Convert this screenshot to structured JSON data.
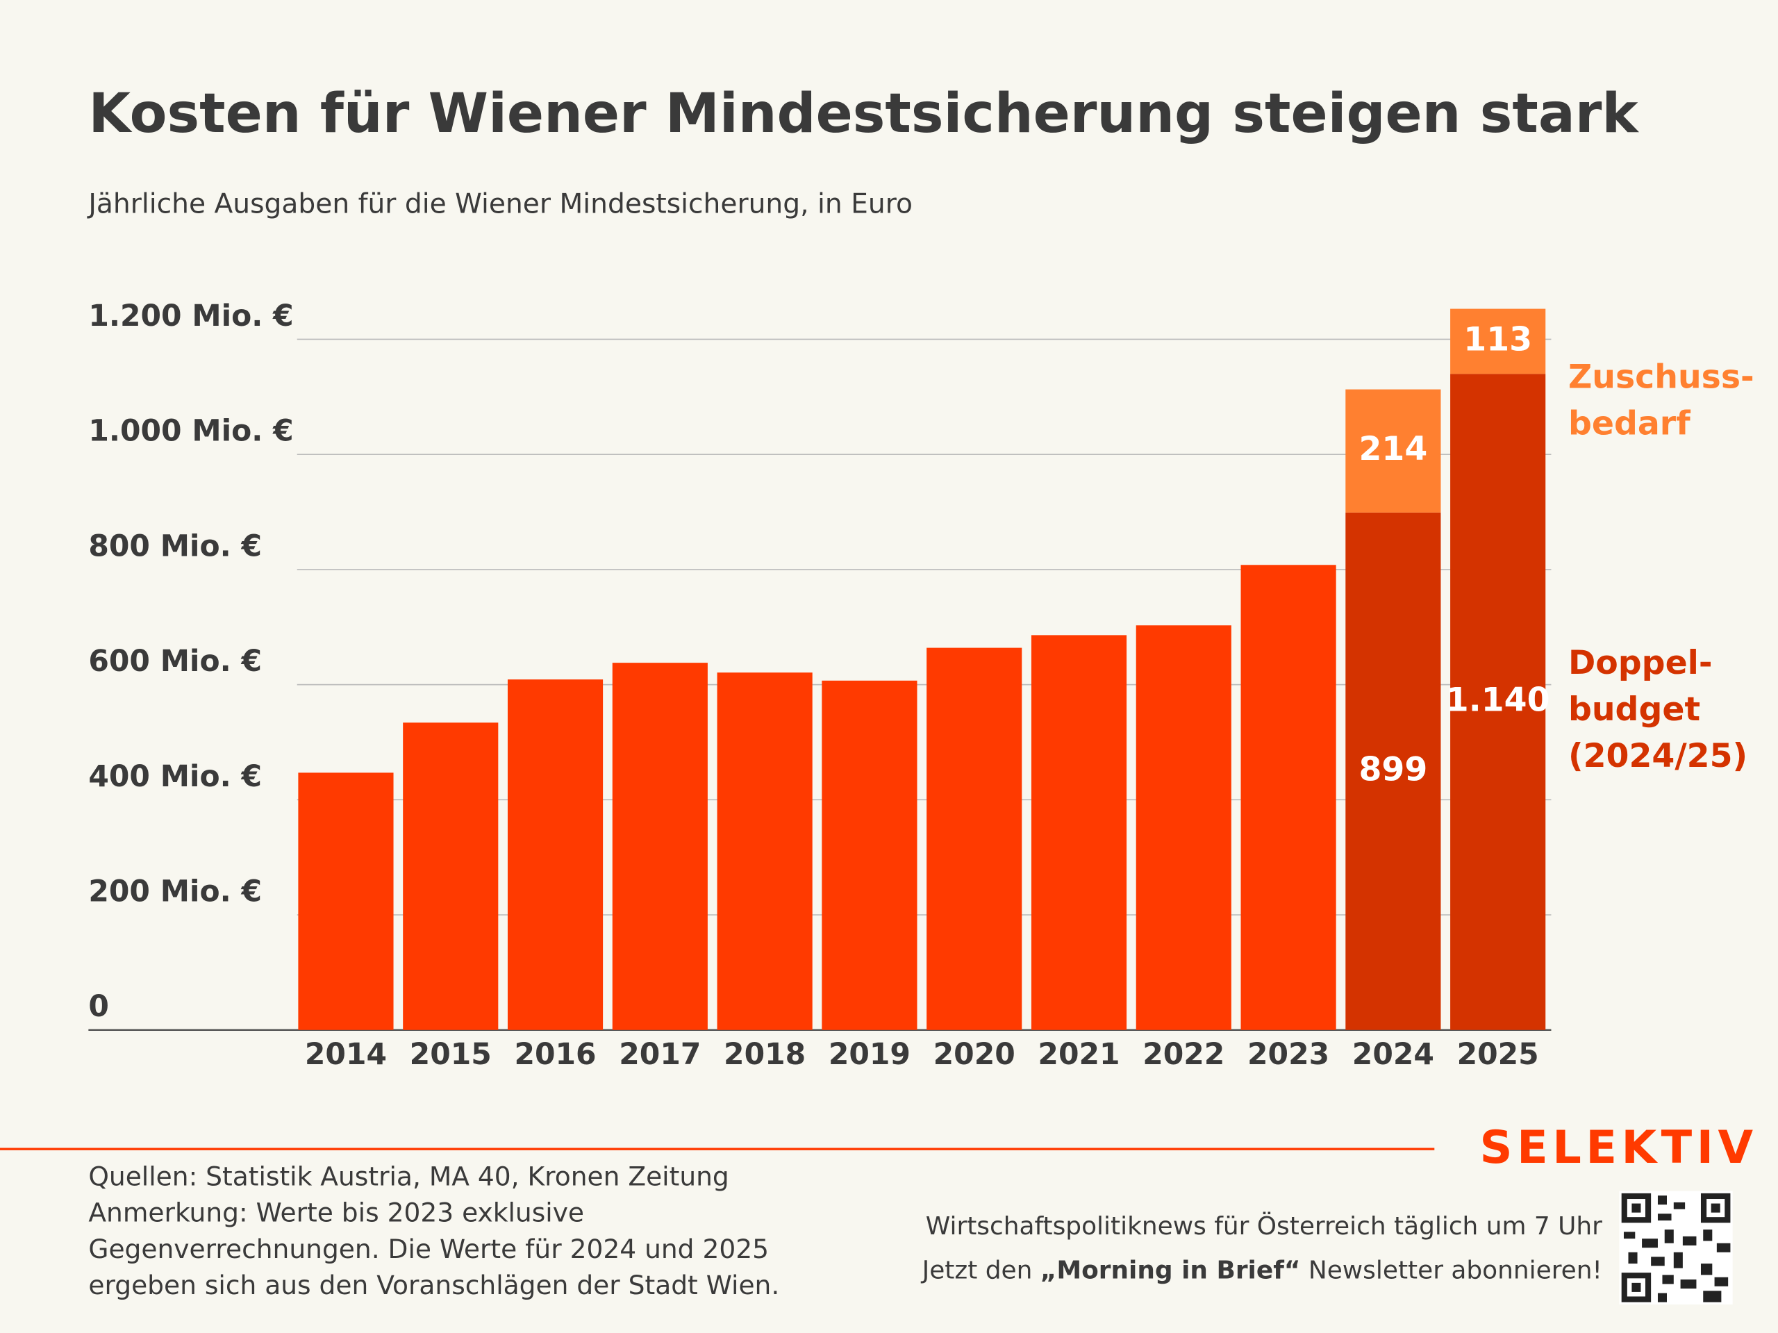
{
  "chart_data": {
    "type": "bar",
    "stacked": true,
    "title": "Kosten für Wiener Mindestsicherung steigen stark",
    "subtitle": "Jährliche Ausgaben für die Wiener Mindestsicherung, in Euro",
    "categories": [
      "2014",
      "2015",
      "2016",
      "2017",
      "2018",
      "2019",
      "2020",
      "2021",
      "2022",
      "2023",
      "2024",
      "2025"
    ],
    "series": [
      {
        "color": "#ff3a00",
        "values": [
          447,
          534,
          609,
          638,
          621,
          607,
          664,
          686,
          703,
          808,
          null,
          null
        ]
      },
      {
        "name": "Doppel-budget (2024/25)",
        "color": "#d43300",
        "values": [
          null,
          null,
          null,
          null,
          null,
          null,
          null,
          null,
          null,
          null,
          899,
          1140
        ],
        "value_labels": [
          null,
          null,
          null,
          null,
          null,
          null,
          null,
          null,
          null,
          null,
          "899",
          "1.140"
        ]
      },
      {
        "name": "Zuschuss-bedarf",
        "color": "#ff8030",
        "values": [
          null,
          null,
          null,
          null,
          null,
          null,
          null,
          null,
          null,
          null,
          214,
          113
        ],
        "value_labels": [
          null,
          null,
          null,
          null,
          null,
          null,
          null,
          null,
          null,
          null,
          "214",
          "113"
        ]
      }
    ],
    "ylim": [
      0,
      1253
    ],
    "yticks": [
      0,
      {
        "value": 200,
        "label": "200 Mio. €"
      },
      {
        "value": 400,
        "label": "400 Mio. €"
      },
      {
        "value": 600,
        "label": "600 Mio. €"
      },
      {
        "value": 800,
        "label": "800 Mio. €"
      },
      {
        "value": 1000,
        "label": "1.000 Mio. €"
      },
      {
        "value": 1200,
        "label": "1.200 Mio. €"
      }
    ],
    "grid": true
  },
  "footer": {
    "sources": "Quellen: Statistik Austria, MA 40, Kronen Zeitung",
    "note": "Anmerkung: Werte bis 2023 exklusive Gegenverrechnungen. Die Werte für 2024 und 2025 ergeben sich aus den Voranschlägen der Stadt Wien.",
    "brand": "SELEKTIV",
    "newsletter_line1": "Wirtschaftspolitiknews für Österreich täglich um 7 Uhr",
    "newsletter_line2": [
      "Jetzt den ",
      "„Morning in Brief“",
      " Newsletter abonnieren!"
    ]
  }
}
